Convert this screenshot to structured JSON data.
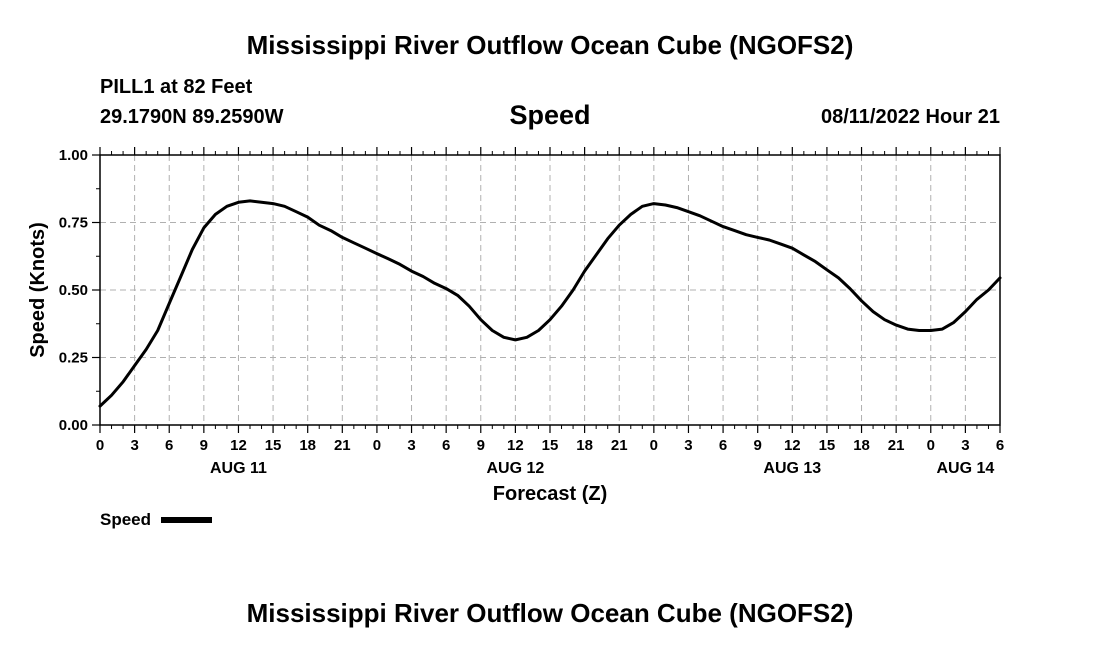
{
  "header": {
    "title": "Mississippi River Outflow Ocean Cube (NGOFS2)",
    "station": "PILL1 at 82 Feet",
    "coords": "29.1790N  89.2590W",
    "subtitle": "Speed",
    "datetime": "08/11/2022 Hour 21"
  },
  "footer": {
    "title": "Mississippi River Outflow Ocean Cube (NGOFS2)"
  },
  "chart_data": {
    "type": "line",
    "xlabel": "Forecast (Z)",
    "ylabel": "Speed (Knots)",
    "xunit": "hours from 2022-08-11 00Z",
    "xlim": [
      0,
      78
    ],
    "ylim": [
      0,
      1.0
    ],
    "yticks": [
      "0.00",
      "0.25",
      "0.50",
      "0.75",
      "1.00"
    ],
    "ytick_values": [
      0,
      0.25,
      0.5,
      0.75,
      1.0
    ],
    "xtick_labels": [
      "0",
      "3",
      "6",
      "9",
      "12",
      "15",
      "18",
      "21",
      "0",
      "3",
      "6",
      "9",
      "12",
      "15",
      "18",
      "21",
      "0",
      "3",
      "6",
      "9",
      "12",
      "15",
      "18",
      "21",
      "0",
      "3",
      "6"
    ],
    "date_labels": [
      {
        "label": "AUG 11",
        "hour": 12
      },
      {
        "label": "AUG 12",
        "hour": 36
      },
      {
        "label": "AUG 13",
        "hour": 60
      },
      {
        "label": "AUG 14",
        "hour": 75
      }
    ],
    "grid": true,
    "legend": {
      "position": "bottom-left",
      "label": "Speed"
    },
    "series": [
      {
        "name": "Speed",
        "color": "#000000",
        "x": [
          0,
          1,
          2,
          3,
          4,
          5,
          6,
          7,
          8,
          9,
          10,
          11,
          12,
          13,
          14,
          15,
          16,
          17,
          18,
          19,
          20,
          21,
          22,
          23,
          24,
          25,
          26,
          27,
          28,
          29,
          30,
          31,
          32,
          33,
          34,
          35,
          36,
          37,
          38,
          39,
          40,
          41,
          42,
          43,
          44,
          45,
          46,
          47,
          48,
          49,
          50,
          51,
          52,
          53,
          54,
          55,
          56,
          57,
          58,
          59,
          60,
          61,
          62,
          63,
          64,
          65,
          66,
          67,
          68,
          69,
          70,
          71,
          72,
          73,
          74,
          75,
          76,
          77,
          78
        ],
        "values": [
          0.07,
          0.11,
          0.16,
          0.22,
          0.28,
          0.35,
          0.45,
          0.55,
          0.65,
          0.73,
          0.78,
          0.81,
          0.825,
          0.83,
          0.825,
          0.82,
          0.81,
          0.79,
          0.77,
          0.74,
          0.72,
          0.695,
          0.675,
          0.655,
          0.635,
          0.615,
          0.595,
          0.57,
          0.55,
          0.525,
          0.505,
          0.48,
          0.44,
          0.39,
          0.35,
          0.325,
          0.315,
          0.325,
          0.35,
          0.39,
          0.44,
          0.5,
          0.57,
          0.63,
          0.69,
          0.74,
          0.78,
          0.81,
          0.82,
          0.815,
          0.805,
          0.79,
          0.775,
          0.755,
          0.735,
          0.72,
          0.705,
          0.695,
          0.685,
          0.67,
          0.655,
          0.63,
          0.605,
          0.575,
          0.545,
          0.505,
          0.46,
          0.42,
          0.39,
          0.37,
          0.355,
          0.35,
          0.35,
          0.355,
          0.38,
          0.42,
          0.465,
          0.5,
          0.545
        ]
      }
    ]
  }
}
